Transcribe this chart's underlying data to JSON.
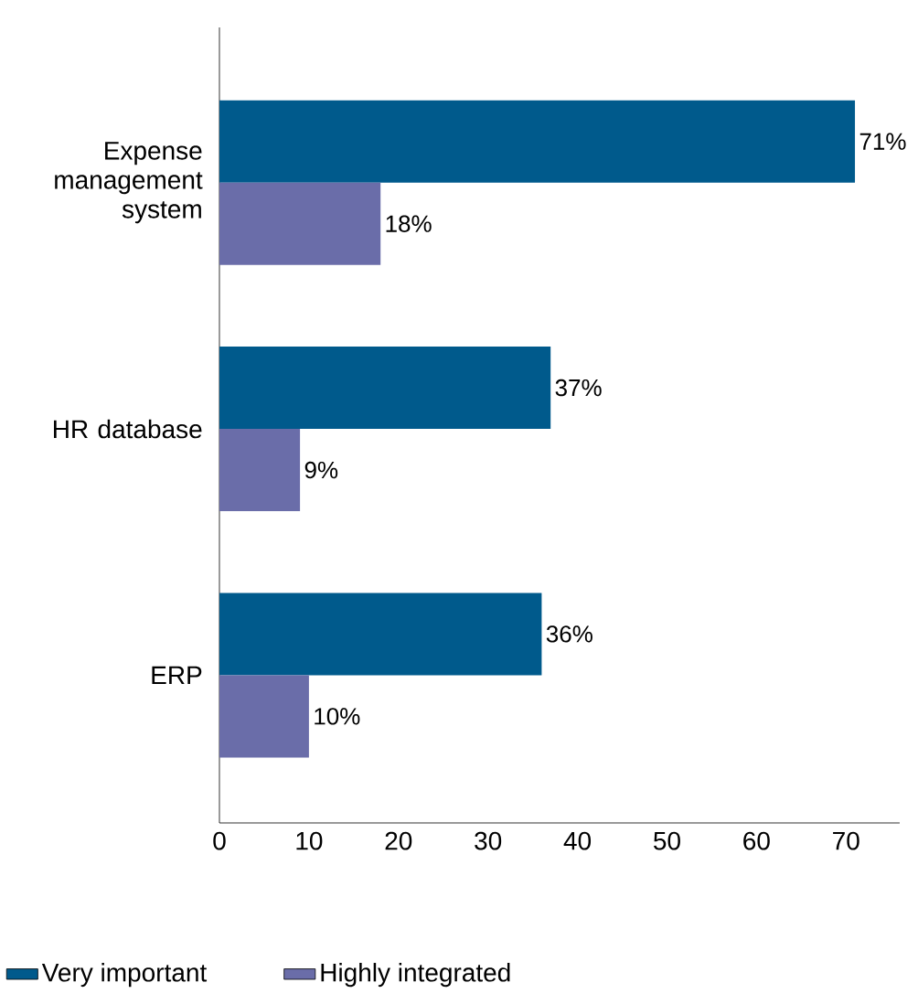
{
  "chart_data": {
    "type": "bar",
    "orientation": "horizontal",
    "categories": [
      "Expense management system",
      "HR database",
      "ERP"
    ],
    "series": [
      {
        "name": "Very important",
        "color": "#005a8c",
        "values": [
          71,
          37,
          36
        ],
        "value_labels": [
          "71%",
          "37%",
          "36%"
        ]
      },
      {
        "name": "Highly integrated",
        "color": "#6a6da9",
        "values": [
          18,
          9,
          10
        ],
        "value_labels": [
          "18%",
          "9%",
          "10%"
        ]
      }
    ],
    "xlim": [
      0,
      76
    ],
    "xticks": [
      0,
      10,
      20,
      30,
      40,
      50,
      60,
      70
    ],
    "legend": "bottom"
  }
}
